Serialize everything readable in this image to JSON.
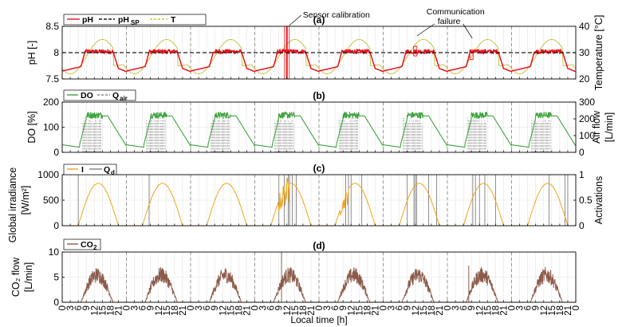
{
  "colors": {
    "ph": "#e8141b",
    "ph_sp": "#1a1a1a",
    "temp": "#c9c24a",
    "do": "#3fa33f",
    "q_air": "#8a8a8a",
    "irradiance": "#f0a41c",
    "q_d": "#7f7f7f",
    "co2": "#8c5a4a",
    "grid": "#e3e3e3",
    "day_divider": "#8c8c8c",
    "annotation_box": "#e8141b"
  },
  "chart_data": [
    {
      "id": "a",
      "type": "line",
      "panel_label": "(a)",
      "ylabel_left": "pH [-]",
      "ylabel_right": "Temperature [°C]",
      "ylim_left": [
        7.5,
        8.5
      ],
      "yticks_left": [
        "7.5",
        "8",
        "8.5"
      ],
      "ylim_right": [
        20,
        40
      ],
      "yticks_right": [
        "20",
        "30",
        "40"
      ],
      "legend": [
        "pH",
        "pH_SP",
        "T"
      ],
      "legend_labels": {
        "ph": "pH",
        "ph_sp_main": "pH",
        "ph_sp_sub": "SP",
        "t": "T"
      },
      "setpoint": 8.0,
      "series_profile": {
        "ph_night": 7.65,
        "ph_day": 8.02,
        "temp_min": 22,
        "temp_max": 35,
        "temp_peak_hour": 15
      },
      "annotations": [
        {
          "text": "Sensor calibration",
          "day": 3,
          "hour": 12
        },
        {
          "text": "Communication",
          "text2": "failure",
          "day": 5,
          "hour": 12,
          "day2": 6,
          "hour2": 9
        }
      ]
    },
    {
      "id": "b",
      "type": "line",
      "panel_label": "(b)",
      "ylabel_left": "DO [%]",
      "ylabel_right_1": "Air flow",
      "ylabel_right_2": "[L/min]",
      "ylim_left": [
        0,
        200
      ],
      "yticks_left": [
        "0",
        "100",
        "200"
      ],
      "ylim_right": [
        0,
        300
      ],
      "yticks_right": [
        "0",
        "100",
        "200",
        "300"
      ],
      "legend": [
        "DO",
        "Q_air"
      ],
      "legend_labels": {
        "do": "DO",
        "q_main": "Q",
        "q_sub": "air"
      },
      "series_profile": {
        "do_night": 30,
        "do_day_max": 155,
        "q_air_on": 200
      }
    },
    {
      "id": "c",
      "type": "line",
      "panel_label": "(c)",
      "ylabel_left_1": "Global irradiance",
      "ylabel_left_2": "[W/m²]",
      "ylabel_right": "Activations",
      "ylim_left": [
        0,
        1000
      ],
      "yticks_left": [
        "0",
        "500",
        "1000"
      ],
      "ylim_right": [
        0,
        1
      ],
      "yticks_right": [
        "0",
        "0.5",
        "1"
      ],
      "legend": [
        "I",
        "Q_d"
      ],
      "legend_labels": {
        "i": "I",
        "q_main": "Q",
        "q_sub": "d"
      },
      "series_profile": {
        "irradiance_peak": 830,
        "sunrise": 6,
        "sunset": 21
      }
    },
    {
      "id": "d",
      "type": "line",
      "panel_label": "(d)",
      "ylabel_left_1": "CO₂ flow",
      "ylabel_left_2": "[L/min]",
      "ylim_left": [
        0,
        10
      ],
      "yticks_left": [
        "0",
        "5",
        "10"
      ],
      "legend": [
        "CO2"
      ],
      "legend_labels": {
        "co2_main": "CO",
        "co2_sub": "2"
      },
      "series_profile": {
        "co2_peak": 7
      }
    }
  ],
  "x_axis": {
    "label": "Local time [h]",
    "days": 8,
    "tick_labels": [
      "0",
      "3",
      "6",
      "9",
      "12",
      "15",
      "18",
      "21",
      "0",
      "3",
      "6",
      "9",
      "12",
      "15",
      "18",
      "21",
      "0",
      "3",
      "6",
      "9",
      "12",
      "15",
      "18",
      "21",
      "0",
      "3",
      "6",
      "9",
      "12",
      "15",
      "18",
      "21",
      "0",
      "3",
      "6",
      "9",
      "12",
      "15",
      "18",
      "21",
      "0",
      "3",
      "6",
      "9",
      "12",
      "15",
      "18",
      "21",
      "0",
      "3",
      "6",
      "9",
      "12",
      "15",
      "18",
      "21",
      "0",
      "3",
      "6",
      "9",
      "12",
      "15",
      "18",
      "21",
      "0"
    ]
  }
}
